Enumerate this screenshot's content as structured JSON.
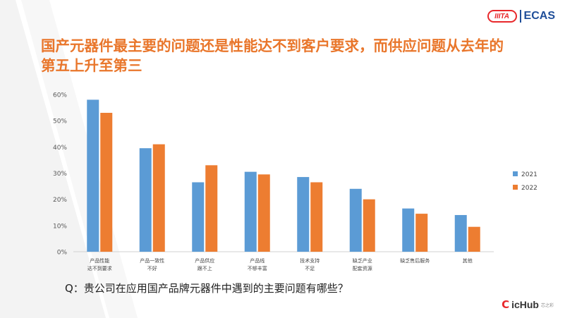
{
  "header": {
    "logo_mark": "IIITA",
    "logo_text": "ECAS",
    "headline_line1": "国产元器件最主要的问题还是性能达不到客户要求，而供应问题从去年的",
    "headline_line2": "第五上升至第三"
  },
  "question": "Q：贵公司在应用国产品牌元器件中遇到的主要问题有哪些？",
  "footer": {
    "brand_mark": "C",
    "brand_text": "icHub",
    "brand_sub": "芯之彩"
  },
  "colors": {
    "series_2021": "#5b9bd5",
    "series_2022": "#ed7d31",
    "headline": "#e9762b"
  },
  "chart_data": {
    "type": "bar",
    "categories": [
      [
        "产品性能",
        "达不到要求"
      ],
      [
        "产品一致性",
        "不好"
      ],
      [
        "产品供应",
        "跟不上"
      ],
      [
        "产品线",
        "不够丰富"
      ],
      [
        "技术支持",
        "不足"
      ],
      [
        "缺乏产业",
        "配套资源"
      ],
      [
        "缺乏售后服务"
      ],
      [
        "其他"
      ]
    ],
    "series": [
      {
        "name": "2021",
        "values": [
          58,
          39.5,
          26.5,
          30.5,
          28.5,
          24,
          16.5,
          14
        ]
      },
      {
        "name": "2022",
        "values": [
          53,
          41,
          33,
          29.5,
          26.5,
          20,
          14.5,
          9.5
        ]
      }
    ],
    "y_ticks": [
      "0%",
      "10%",
      "20%",
      "30%",
      "40%",
      "50%",
      "60%"
    ],
    "ylim": [
      0,
      60
    ],
    "grid": false,
    "legend_position": "right"
  }
}
